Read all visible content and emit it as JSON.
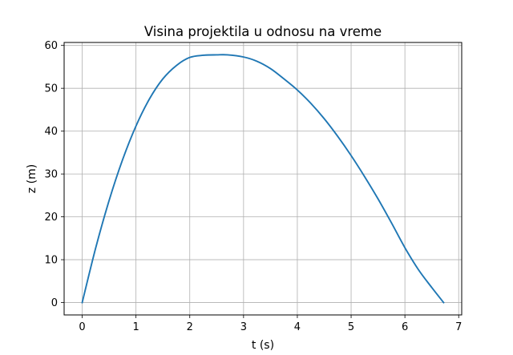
{
  "chart_data": {
    "type": "line",
    "title": "Visina projektila u odnosu na vreme",
    "xlabel": "t (s)",
    "ylabel": "z (m)",
    "xlim": [
      -0.336,
      7.056
    ],
    "ylim": [
      -2.89,
      60.69
    ],
    "xticks": [
      0,
      1,
      2,
      3,
      4,
      5,
      6,
      7
    ],
    "yticks": [
      0,
      10,
      20,
      30,
      40,
      50,
      60
    ],
    "xtick_labels": [
      "0",
      "1",
      "2",
      "3",
      "4",
      "5",
      "6",
      "7"
    ],
    "ytick_labels": [
      "0",
      "10",
      "20",
      "30",
      "40",
      "50",
      "60"
    ],
    "grid": true,
    "series": [
      {
        "color": "#1f77b4",
        "x": [
          0,
          0.25,
          0.5,
          0.75,
          1.0,
          1.25,
          1.5,
          1.75,
          2.0,
          2.25,
          2.5,
          2.7,
          3.0,
          3.25,
          3.5,
          3.75,
          4.0,
          4.25,
          4.5,
          4.75,
          5.0,
          5.25,
          5.5,
          5.75,
          6.0,
          6.25,
          6.5,
          6.72
        ],
        "y": [
          0,
          12.7,
          23.8,
          33.3,
          41.2,
          47.5,
          52.2,
          55.3,
          57.2,
          57.7,
          57.8,
          57.8,
          57.3,
          56.3,
          54.6,
          52.2,
          49.6,
          46.5,
          42.9,
          38.8,
          34.3,
          29.4,
          24.2,
          18.6,
          12.8,
          7.7,
          3.5,
          0
        ]
      }
    ]
  }
}
